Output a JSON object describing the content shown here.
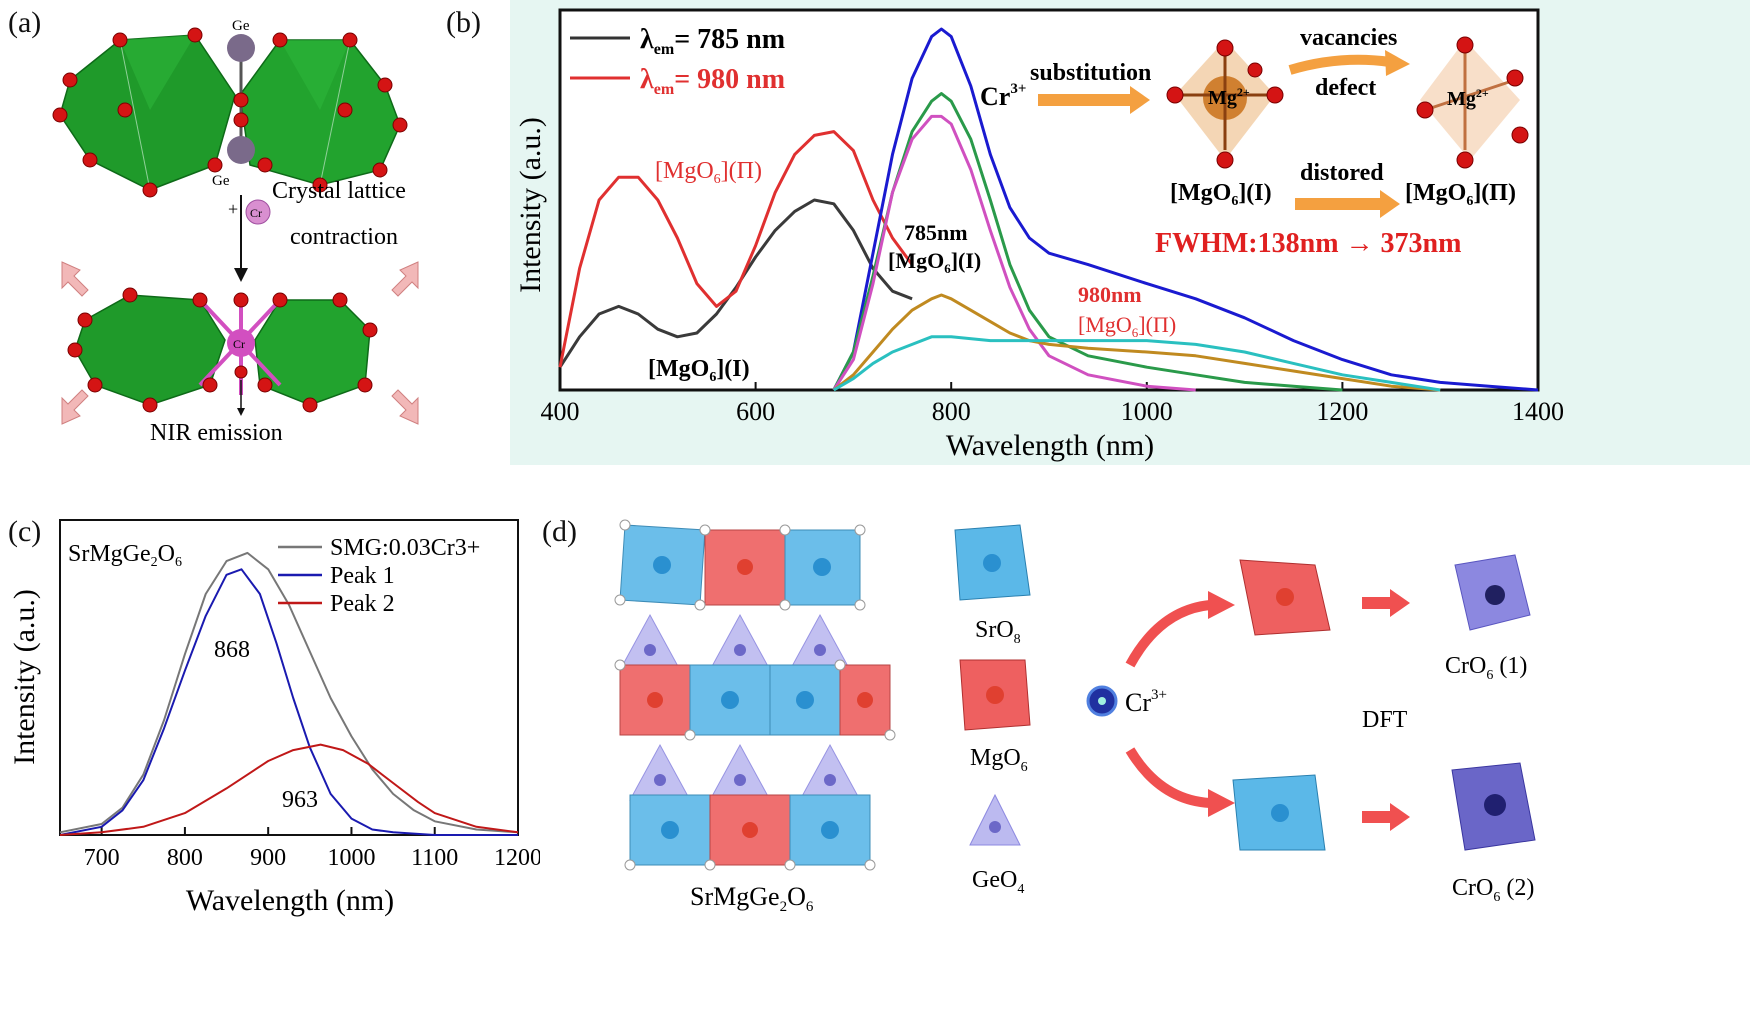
{
  "panels": {
    "a": {
      "label": "(a)",
      "ge_top": "Ge",
      "ge_bottom": "Ge",
      "plus_cr": "+",
      "cr_atom": "Cr",
      "cr_center": "Cr",
      "text_line1": "Crystal lattice",
      "text_line2": "contraction",
      "nir": "NIR emission"
    },
    "b": {
      "label": "(b)",
      "legend": [
        {
          "lambda": "λ",
          "sub": "em",
          "value": "= 785 nm",
          "color": "#333333"
        },
        {
          "lambda": "λ",
          "sub": "em",
          "value": "= 980 nm",
          "color": "#e03030"
        }
      ],
      "ann_mgo6_II_red": "[MgO6](Π)",
      "ann_785nm": "785nm",
      "ann_mgo6_I_peak": "[MgO6](I)",
      "ann_980nm": "980nm",
      "ann_mgo6_II_peak": "[MgO6](Π)",
      "ann_mgo6_I_low": "[MgO6](I)",
      "cr3": "Cr3+",
      "substitution": "substitution",
      "mg_left": "Mg2+",
      "mg_right": "Mg2+",
      "vacancies": "vacancies",
      "defect": "defect",
      "distored": "distored",
      "mgo6_I_label": "[MgO6](I)",
      "mgo6_II_label": "[MgO6](Π)",
      "fwhm": "FWHM:138nm → 373nm"
    },
    "c": {
      "label": "(c)",
      "compound": "SrMgGe2O6",
      "peak1_value": "868",
      "peak2_value": "963"
    },
    "d": {
      "label": "(d)",
      "srmg": "SrMgGe2O6",
      "sro8": "SrO8",
      "mgo6": "MgO6",
      "geo4": "GeO4",
      "cr3": "Cr3+",
      "dft": "DFT",
      "cro6_1": "CrO6 (1)",
      "cro6_2": "CrO6 (2)"
    }
  },
  "colors": {
    "green_poly": "#1f9a2a",
    "oxygen": "#d41414",
    "ge_atom": "#7a6a8a",
    "cr_atom": "#d24fc0",
    "blue_poly": "#5bb8e8",
    "red_poly": "#ee6060",
    "purple_poly": "#8c88e0",
    "arrow_orange": "#f4a040",
    "arrow_red": "#f05050",
    "bg_b": "#e6f6f2"
  },
  "chart_data": [
    {
      "type": "line",
      "panel": "b",
      "xlabel": "Wavelength (nm)",
      "ylabel": "Intensity (a.u.)",
      "xlim": [
        400,
        1400
      ],
      "ylim": [
        0,
        1.0
      ],
      "xticks": [
        400,
        600,
        800,
        1000,
        1200,
        1400
      ],
      "grid": false,
      "series": [
        {
          "name": "λem= 785 nm",
          "color": "#3a3a3a",
          "x": [
            400,
            420,
            440,
            460,
            480,
            500,
            520,
            540,
            560,
            580,
            600,
            620,
            640,
            660,
            680,
            700,
            720,
            740,
            760
          ],
          "y": [
            0.06,
            0.14,
            0.2,
            0.22,
            0.2,
            0.16,
            0.14,
            0.15,
            0.2,
            0.27,
            0.35,
            0.42,
            0.47,
            0.5,
            0.49,
            0.42,
            0.32,
            0.26,
            0.24
          ]
        },
        {
          "name": "λem= 980 nm",
          "color": "#e03030",
          "x": [
            400,
            420,
            440,
            460,
            480,
            500,
            520,
            540,
            560,
            580,
            600,
            620,
            640,
            660,
            680,
            700,
            720,
            740,
            760
          ],
          "y": [
            0.06,
            0.32,
            0.5,
            0.56,
            0.56,
            0.5,
            0.4,
            0.28,
            0.22,
            0.26,
            0.38,
            0.52,
            0.62,
            0.67,
            0.68,
            0.63,
            0.5,
            0.4,
            0.33
          ]
        },
        {
          "color": "#1a1ad0",
          "x": [
            680,
            700,
            720,
            740,
            760,
            780,
            790,
            800,
            820,
            840,
            860,
            880,
            900,
            940,
            1000,
            1050,
            1100,
            1150,
            1200,
            1250,
            1300,
            1350,
            1400
          ],
          "y": [
            0.0,
            0.1,
            0.36,
            0.62,
            0.82,
            0.93,
            0.95,
            0.93,
            0.8,
            0.62,
            0.48,
            0.4,
            0.36,
            0.33,
            0.28,
            0.24,
            0.19,
            0.13,
            0.08,
            0.04,
            0.02,
            0.01,
            0.0
          ]
        },
        {
          "color": "#2a9a4a",
          "x": [
            680,
            700,
            720,
            740,
            760,
            780,
            790,
            800,
            820,
            840,
            860,
            880,
            900,
            940,
            1000,
            1050,
            1100,
            1150,
            1200
          ],
          "y": [
            0.0,
            0.1,
            0.3,
            0.52,
            0.68,
            0.76,
            0.78,
            0.76,
            0.66,
            0.5,
            0.33,
            0.21,
            0.14,
            0.09,
            0.06,
            0.04,
            0.02,
            0.01,
            0.0
          ]
        },
        {
          "color": "#d050c0",
          "x": [
            680,
            700,
            720,
            740,
            760,
            780,
            790,
            800,
            820,
            840,
            860,
            880,
            900,
            940,
            1000,
            1050
          ],
          "y": [
            0.0,
            0.08,
            0.28,
            0.52,
            0.66,
            0.72,
            0.72,
            0.7,
            0.58,
            0.42,
            0.27,
            0.16,
            0.09,
            0.04,
            0.01,
            0.0
          ]
        },
        {
          "color": "#c08a20",
          "x": [
            680,
            700,
            720,
            740,
            760,
            780,
            790,
            800,
            820,
            840,
            860,
            880,
            900,
            940,
            1000,
            1050,
            1100,
            1150,
            1200,
            1250,
            1300
          ],
          "y": [
            0.0,
            0.04,
            0.1,
            0.16,
            0.21,
            0.24,
            0.25,
            0.24,
            0.21,
            0.18,
            0.15,
            0.13,
            0.12,
            0.11,
            0.1,
            0.09,
            0.07,
            0.05,
            0.03,
            0.01,
            0.0
          ]
        },
        {
          "color": "#2ac0c0",
          "x": [
            680,
            700,
            720,
            740,
            760,
            780,
            790,
            800,
            840,
            880,
            920,
            960,
            1000,
            1050,
            1100,
            1150,
            1200,
            1250,
            1300
          ],
          "y": [
            0.0,
            0.03,
            0.07,
            0.1,
            0.12,
            0.14,
            0.14,
            0.14,
            0.13,
            0.13,
            0.13,
            0.13,
            0.13,
            0.12,
            0.1,
            0.07,
            0.04,
            0.02,
            0.0
          ]
        }
      ]
    },
    {
      "type": "line",
      "panel": "c",
      "xlabel": "Wavelength (nm)",
      "ylabel": "Intensity (a.u.)",
      "xlim": [
        650,
        1200
      ],
      "ylim": [
        0,
        1.15
      ],
      "xticks": [
        700,
        800,
        900,
        1000,
        1100,
        1200
      ],
      "grid": false,
      "legend": "top-right",
      "series": [
        {
          "name": "SMG:0.03Cr3+",
          "color": "#777777",
          "x": [
            650,
            700,
            725,
            750,
            775,
            800,
            825,
            850,
            875,
            900,
            925,
            950,
            975,
            1000,
            1025,
            1050,
            1075,
            1100,
            1150,
            1200
          ],
          "y": [
            0.01,
            0.04,
            0.1,
            0.22,
            0.42,
            0.66,
            0.88,
            1.0,
            1.03,
            0.97,
            0.84,
            0.67,
            0.5,
            0.36,
            0.24,
            0.15,
            0.09,
            0.05,
            0.02,
            0.01
          ]
        },
        {
          "name": "Peak 1",
          "color": "#1a1ab0",
          "x": [
            650,
            700,
            725,
            750,
            775,
            800,
            825,
            850,
            868,
            890,
            910,
            930,
            950,
            975,
            1000,
            1025,
            1050,
            1100,
            1200
          ],
          "y": [
            0.0,
            0.03,
            0.09,
            0.2,
            0.39,
            0.6,
            0.8,
            0.95,
            0.97,
            0.88,
            0.7,
            0.5,
            0.32,
            0.15,
            0.06,
            0.02,
            0.01,
            0.0,
            0.0
          ]
        },
        {
          "name": "Peak 2",
          "color": "#c01818",
          "x": [
            650,
            700,
            750,
            800,
            850,
            900,
            930,
            963,
            990,
            1020,
            1050,
            1080,
            1100,
            1150,
            1200
          ],
          "y": [
            0.0,
            0.01,
            0.03,
            0.08,
            0.17,
            0.27,
            0.31,
            0.33,
            0.31,
            0.26,
            0.19,
            0.12,
            0.08,
            0.03,
            0.01
          ]
        }
      ]
    }
  ]
}
